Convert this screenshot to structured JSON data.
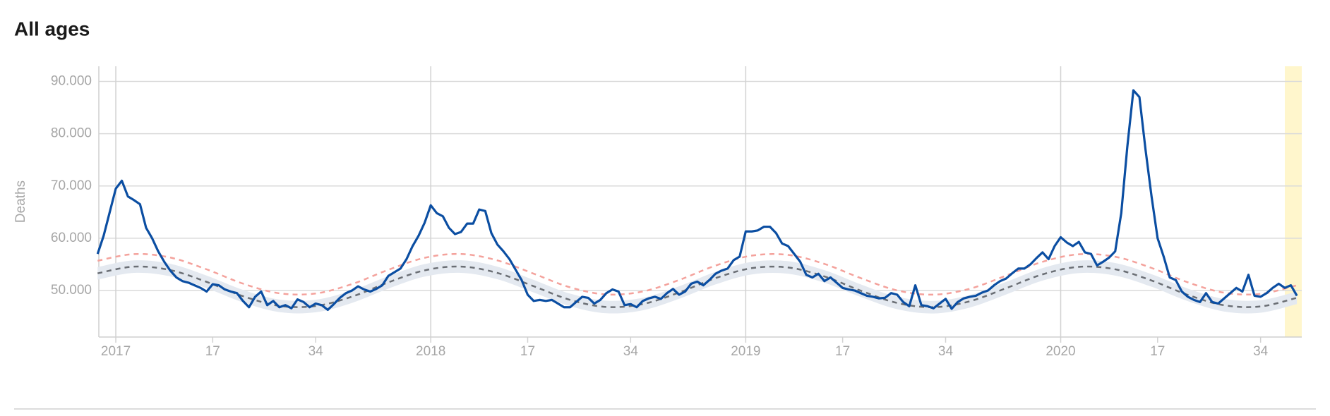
{
  "chart_data": {
    "type": "line",
    "title": "All ages",
    "y_label": "Deaths",
    "xlim": [
      -2.8,
      195.8
    ],
    "ylim": [
      41100,
      92900
    ],
    "xticks": [
      {
        "value": 0,
        "label": "2017"
      },
      {
        "value": 52,
        "label": "2018"
      },
      {
        "value": 104,
        "label": "2019"
      },
      {
        "value": 156,
        "label": "2020"
      }
    ],
    "xminorticks": [
      {
        "value": 16,
        "label": "17"
      },
      {
        "value": 33,
        "label": "34"
      },
      {
        "value": 68,
        "label": "17"
      },
      {
        "value": 85,
        "label": "34"
      },
      {
        "value": 120,
        "label": "17"
      },
      {
        "value": 137,
        "label": "34"
      },
      {
        "value": 172,
        "label": "17"
      },
      {
        "value": 189,
        "label": "34"
      }
    ],
    "yticks": [
      {
        "value": 50000,
        "label": "50.000"
      },
      {
        "value": 60000,
        "label": "60.000"
      },
      {
        "value": 70000,
        "label": "70.000"
      },
      {
        "value": 80000,
        "label": "80.000"
      },
      {
        "value": 90000,
        "label": "90.000"
      }
    ],
    "grid": true,
    "highlight": {
      "xlim": [
        193,
        195.8
      ],
      "color": "#fff6cc"
    },
    "band": {
      "color": "#e4e9f0",
      "x": [
        -3,
        3,
        9,
        15,
        21,
        27,
        33,
        39,
        45,
        51,
        57,
        63,
        69,
        75,
        81,
        87,
        93,
        99,
        105,
        111,
        117,
        123,
        129,
        135,
        141,
        147,
        153,
        159,
        165,
        171,
        177,
        183,
        189,
        195
      ],
      "lower": [
        52090,
        53370,
        52710,
        50450,
        47720,
        45870,
        45830,
        47630,
        50360,
        52660,
        53380,
        52160,
        49620,
        47010,
        45650,
        46210,
        48410,
        51160,
        53080,
        53210,
        51490,
        48770,
        46420,
        45610,
        46740,
        49250,
        51890,
        53330,
        52860,
        50720,
        47960,
        45980,
        45750,
        47400
      ],
      "upper": [
        54490,
        55770,
        55110,
        52850,
        50120,
        48270,
        48230,
        50030,
        52760,
        55060,
        55780,
        54560,
        52020,
        49410,
        48050,
        48610,
        50810,
        53560,
        55480,
        55610,
        53890,
        51170,
        48820,
        48010,
        49140,
        51650,
        54290,
        55730,
        55260,
        53120,
        50360,
        48380,
        48150,
        49800
      ]
    },
    "series": [
      {
        "color": "#f4a29c",
        "dash": true,
        "smooth": true,
        "x": [
          -3,
          3,
          9,
          15,
          21,
          27,
          33,
          39,
          45,
          51,
          57,
          63,
          69,
          75,
          81,
          87,
          93,
          99,
          105,
          111,
          117,
          123,
          129,
          135,
          141,
          147,
          153,
          159,
          165,
          171,
          177,
          183,
          189,
          195
        ],
        "values": [
          55690,
          56970,
          56310,
          54050,
          51320,
          49470,
          49430,
          51230,
          53960,
          56260,
          56980,
          55760,
          53220,
          50610,
          49250,
          49810,
          52010,
          54760,
          56680,
          56810,
          55090,
          52370,
          50020,
          49210,
          50340,
          52850,
          55490,
          56930,
          56460,
          54320,
          51560,
          49580,
          49350,
          51000
        ]
      },
      {
        "color": "#6b6f75",
        "dash": true,
        "smooth": true,
        "x": [
          -3,
          3,
          9,
          15,
          21,
          27,
          33,
          39,
          45,
          51,
          57,
          63,
          69,
          75,
          81,
          87,
          93,
          99,
          105,
          111,
          117,
          123,
          129,
          135,
          141,
          147,
          153,
          159,
          165,
          171,
          177,
          183,
          189,
          195
        ],
        "values": [
          53290,
          54570,
          53910,
          51650,
          48920,
          47070,
          47030,
          48830,
          51560,
          53860,
          54580,
          53360,
          50820,
          48210,
          46850,
          47410,
          49610,
          52360,
          54280,
          54410,
          52690,
          49970,
          47620,
          46810,
          47940,
          50450,
          53090,
          54530,
          54060,
          51920,
          49160,
          47180,
          46950,
          48600
        ]
      },
      {
        "color": "#0b4ea2",
        "dash": false,
        "smooth": false,
        "x": [
          -3,
          -2,
          -1,
          0,
          1,
          2,
          3,
          4,
          5,
          6,
          7,
          8,
          9,
          10,
          11,
          12,
          13,
          14,
          15,
          16,
          17,
          18,
          19,
          20,
          21,
          22,
          23,
          24,
          25,
          26,
          27,
          28,
          29,
          30,
          31,
          32,
          33,
          34,
          35,
          36,
          37,
          38,
          39,
          40,
          41,
          42,
          43,
          44,
          45,
          46,
          47,
          48,
          49,
          50,
          51,
          52,
          53,
          54,
          55,
          56,
          57,
          58,
          59,
          60,
          61,
          62,
          63,
          64,
          65,
          66,
          67,
          68,
          69,
          70,
          71,
          72,
          73,
          74,
          75,
          76,
          77,
          78,
          79,
          80,
          81,
          82,
          83,
          84,
          85,
          86,
          87,
          88,
          89,
          90,
          91,
          92,
          93,
          94,
          95,
          96,
          97,
          98,
          99,
          100,
          101,
          102,
          103,
          104,
          105,
          106,
          107,
          108,
          109,
          110,
          111,
          112,
          113,
          114,
          115,
          116,
          117,
          118,
          119,
          120,
          121,
          122,
          123,
          124,
          125,
          126,
          127,
          128,
          129,
          130,
          131,
          132,
          133,
          134,
          135,
          136,
          137,
          138,
          139,
          140,
          141,
          142,
          143,
          144,
          145,
          146,
          147,
          148,
          149,
          150,
          151,
          152,
          153,
          154,
          155,
          156,
          157,
          158,
          159,
          160,
          161,
          162,
          163,
          164,
          165,
          166,
          167,
          168,
          169,
          170,
          171,
          172,
          173,
          174,
          175,
          176,
          177,
          178,
          179,
          180,
          181,
          182,
          183,
          184,
          185,
          186,
          187,
          188,
          189,
          190,
          191,
          192,
          193,
          194,
          195
        ],
        "values": [
          57000,
          60500,
          65000,
          69500,
          71000,
          68000,
          67300,
          66500,
          62000,
          60000,
          57500,
          55500,
          53800,
          52500,
          51800,
          51500,
          51000,
          50500,
          49800,
          51200,
          51000,
          50200,
          49800,
          49500,
          48000,
          46800,
          48800,
          49800,
          47200,
          48000,
          46800,
          47200,
          46600,
          48300,
          47800,
          46800,
          47500,
          47200,
          46300,
          47400,
          48600,
          49500,
          50000,
          50800,
          50200,
          49800,
          50300,
          51000,
          52800,
          53500,
          54200,
          56000,
          58500,
          60500,
          63000,
          66300,
          64800,
          64200,
          62000,
          60800,
          61200,
          62800,
          62800,
          65500,
          65200,
          61000,
          58800,
          57500,
          56000,
          54000,
          52000,
          49200,
          48000,
          48200,
          48000,
          48200,
          47500,
          46800,
          46800,
          47800,
          48800,
          48600,
          47500,
          48200,
          49500,
          50200,
          49800,
          47200,
          47400,
          46800,
          48000,
          48500,
          48800,
          48400,
          49500,
          50300,
          49200,
          49800,
          51300,
          51700,
          51000,
          52000,
          53200,
          53800,
          54200,
          55800,
          56500,
          61300,
          61300,
          61500,
          62200,
          62200,
          61000,
          59000,
          58500,
          57000,
          55500,
          53000,
          52500,
          53200,
          51800,
          52500,
          51500,
          50500,
          50200,
          50000,
          49500,
          49000,
          48800,
          48500,
          48600,
          49500,
          49200,
          47800,
          47000,
          51000,
          47200,
          47000,
          46600,
          47500,
          48400,
          46500,
          47800,
          48500,
          48800,
          49000,
          49600,
          50000,
          51000,
          51800,
          52300,
          53300,
          54200,
          54200,
          55000,
          56200,
          57300,
          56000,
          58500,
          60200,
          59200,
          58500,
          59300,
          57300,
          57000,
          54800,
          55500,
          56300,
          57500,
          64800,
          77500,
          88300,
          87000,
          77000,
          68000,
          60000,
          56500,
          52500,
          52000,
          49800,
          48800,
          48200,
          47800,
          49500,
          47800,
          47500,
          48500,
          49500,
          50500,
          49800,
          53000,
          49000,
          48800,
          49500,
          50500,
          51300,
          50500,
          51000,
          49000
        ]
      }
    ]
  }
}
